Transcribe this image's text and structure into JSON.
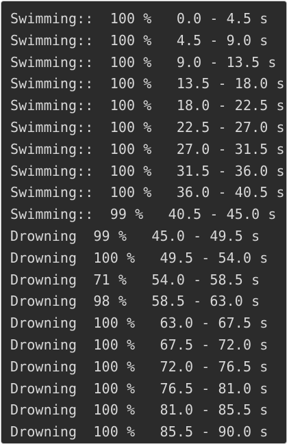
{
  "terminal": {
    "lines": [
      "Swimming::  100 %   0.0 - 4.5 s",
      "Swimming::  100 %   4.5 - 9.0 s",
      "Swimming::  100 %   9.0 - 13.5 s",
      "Swimming::  100 %   13.5 - 18.0 s",
      "Swimming::  100 %   18.0 - 22.5 s",
      "Swimming::  100 %   22.5 - 27.0 s",
      "Swimming::  100 %   27.0 - 31.5 s",
      "Swimming::  100 %   31.5 - 36.0 s",
      "Swimming::  100 %   36.0 - 40.5 s",
      "Swimming::  99 %   40.5 - 45.0 s",
      "Drowning  99 %   45.0 - 49.5 s",
      "Drowning  100 %   49.5 - 54.0 s",
      "Drowning  71 %   54.0 - 58.5 s",
      "Drowning  98 %   58.5 - 63.0 s",
      "Drowning  100 %   63.0 - 67.5 s",
      "Drowning  100 %   67.5 - 72.0 s",
      "Drowning  100 %   72.0 - 76.5 s",
      "Drowning  100 %   76.5 - 81.0 s",
      "Drowning  100 %   81.0 - 85.5 s",
      "Drowning  100 %   85.5 - 90.0 s"
    ]
  }
}
